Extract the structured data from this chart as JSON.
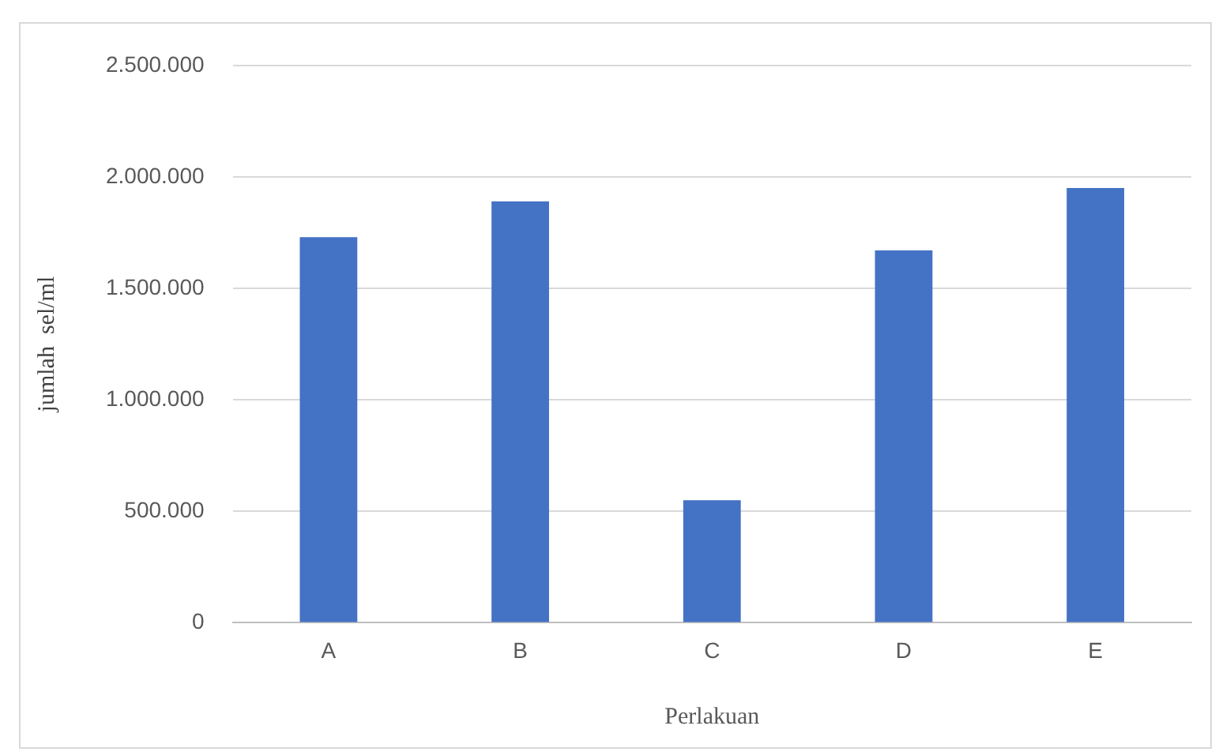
{
  "chart_data": {
    "type": "bar",
    "xlabel": "Perlakuan",
    "ylabel": "jumlah  sel/ml",
    "categories": [
      "A",
      "B",
      "C",
      "D",
      "E"
    ],
    "values": [
      1730000,
      1890000,
      550000,
      1670000,
      1950000
    ],
    "color": "#4472c4",
    "ylim": [
      0,
      2500000
    ],
    "yticks": [
      0,
      {
        "value": 500000,
        "label": "500.000"
      },
      {
        "value": 1000000,
        "label": "1.000.000"
      },
      {
        "value": 1500000,
        "label": "1.500.000"
      },
      {
        "value": 2000000,
        "label": "2.000.000"
      },
      {
        "value": 2500000,
        "label": "2.500.000"
      }
    ],
    "grid": "y",
    "legend": false
  }
}
